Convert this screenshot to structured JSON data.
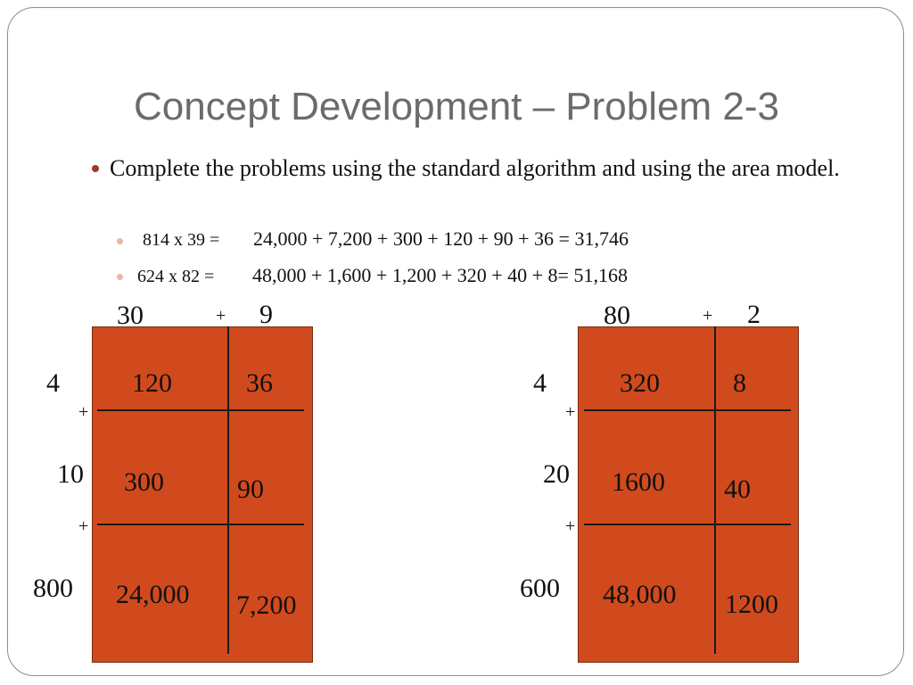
{
  "title": "Concept Development – Problem 2-3",
  "bullet": {
    "text": "Complete the problems using the standard algorithm and using the area model.",
    "subitems": [
      {
        "expr": "814 x 39 =",
        "result": "24,000 + 7,200 + 300 + 120 + 90 + 36 = 31,746"
      },
      {
        "expr": "624 x 82 =",
        "result": "48,000 + 1,600 + 1,200 + 320 + 40 + 8= 51,168"
      }
    ]
  },
  "models": [
    {
      "top_labels": [
        "30",
        "+",
        "9"
      ],
      "side_labels": [
        "4",
        "10",
        "800"
      ],
      "side_plus": [
        "+",
        "+"
      ],
      "cells": [
        [
          "120",
          "36"
        ],
        [
          "300",
          "90"
        ],
        [
          "24,000",
          "7,200"
        ]
      ]
    },
    {
      "top_labels": [
        "80",
        "+",
        "2"
      ],
      "side_labels": [
        "4",
        "20",
        "600"
      ],
      "side_plus": [
        "+",
        "+"
      ],
      "cells": [
        [
          "320",
          "8"
        ],
        [
          "1600",
          "40"
        ],
        [
          "48,000",
          "1200"
        ]
      ]
    }
  ],
  "colors": {
    "box_fill": "#d04a1d",
    "title": "#6b6b6b",
    "bullet": "#a03a22",
    "sub_bullet": "#e8b6a8"
  }
}
